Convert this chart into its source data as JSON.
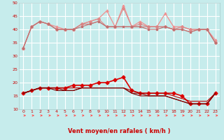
{
  "title": "",
  "xlabel": "Vent moyen/en rafales ( km/h )",
  "ylabel": "",
  "xlim": [
    -0.5,
    23.5
  ],
  "ylim": [
    10,
    50
  ],
  "yticks": [
    10,
    15,
    20,
    25,
    30,
    35,
    40,
    45,
    50
  ],
  "xticks": [
    0,
    1,
    2,
    3,
    4,
    5,
    6,
    7,
    8,
    9,
    10,
    11,
    12,
    13,
    14,
    15,
    16,
    17,
    18,
    19,
    20,
    21,
    22,
    23
  ],
  "background_color": "#c6ecec",
  "grid_color": "#ffffff",
  "lines": [
    {
      "x": [
        0,
        1,
        2,
        3,
        4,
        5,
        6,
        7,
        8,
        9,
        10,
        11,
        12,
        13,
        14,
        15,
        16,
        17,
        18,
        19,
        20,
        21,
        22,
        23
      ],
      "y": [
        33,
        41,
        43,
        42,
        41,
        40,
        40,
        42,
        43,
        44,
        47,
        41,
        49,
        41,
        43,
        41,
        41,
        46,
        41,
        41,
        40,
        40,
        40,
        36
      ],
      "color": "#f09090",
      "marker": "^",
      "markersize": 2.2,
      "linewidth": 0.9,
      "zorder": 2
    },
    {
      "x": [
        0,
        1,
        2,
        3,
        4,
        5,
        6,
        7,
        8,
        9,
        10,
        11,
        12,
        13,
        14,
        15,
        16,
        17,
        18,
        19,
        20,
        21,
        22,
        23
      ],
      "y": [
        33,
        41,
        43,
        42,
        40,
        40,
        40,
        42,
        43,
        44,
        41,
        41,
        48,
        41,
        42,
        41,
        41,
        41,
        40,
        41,
        40,
        40,
        40,
        35
      ],
      "color": "#e08888",
      "marker": "D",
      "markersize": 2.0,
      "linewidth": 0.8,
      "zorder": 2
    },
    {
      "x": [
        0,
        1,
        2,
        3,
        4,
        5,
        6,
        7,
        8,
        9,
        10,
        11,
        12,
        13,
        14,
        15,
        16,
        17,
        18,
        19,
        20,
        21,
        22,
        23
      ],
      "y": [
        33,
        41,
        43,
        42,
        40,
        40,
        40,
        42,
        42,
        43,
        41,
        41,
        41,
        41,
        41,
        41,
        41,
        41,
        40,
        40,
        39,
        40,
        40,
        35
      ],
      "color": "#d08080",
      "marker": null,
      "markersize": 0,
      "linewidth": 0.8,
      "zorder": 2
    },
    {
      "x": [
        0,
        1,
        2,
        3,
        4,
        5,
        6,
        7,
        8,
        9,
        10,
        11,
        12,
        13,
        14,
        15,
        16,
        17,
        18,
        19,
        20,
        21,
        22,
        23
      ],
      "y": [
        33,
        41,
        43,
        42,
        40,
        40,
        40,
        41,
        42,
        43,
        41,
        41,
        41,
        41,
        41,
        40,
        40,
        41,
        40,
        40,
        39,
        40,
        40,
        35
      ],
      "color": "#c07070",
      "marker": "s",
      "markersize": 2.0,
      "linewidth": 0.8,
      "zorder": 2
    },
    {
      "x": [
        0,
        1,
        2,
        3,
        4,
        5,
        6,
        7,
        8,
        9,
        10,
        11,
        12,
        13,
        14,
        15,
        16,
        17,
        18,
        19,
        20,
        21,
        22,
        23
      ],
      "y": [
        16,
        17,
        18,
        18,
        18,
        18,
        19,
        19,
        19,
        20,
        20,
        21,
        22,
        17,
        16,
        16,
        16,
        16,
        16,
        15,
        12,
        12,
        12,
        16
      ],
      "color": "#dd0000",
      "marker": "D",
      "markersize": 2.5,
      "linewidth": 1.2,
      "zorder": 3
    },
    {
      "x": [
        0,
        1,
        2,
        3,
        4,
        5,
        6,
        7,
        8,
        9,
        10,
        11,
        12,
        13,
        14,
        15,
        16,
        17,
        18,
        19,
        20,
        21,
        22,
        23
      ],
      "y": [
        16,
        17,
        18,
        18,
        18,
        18,
        18,
        18,
        18,
        18,
        18,
        18,
        18,
        17,
        16,
        16,
        16,
        16,
        15,
        14,
        13,
        13,
        13,
        16
      ],
      "color": "#bb0000",
      "marker": null,
      "markersize": 0,
      "linewidth": 0.8,
      "zorder": 3
    },
    {
      "x": [
        0,
        1,
        2,
        3,
        4,
        5,
        6,
        7,
        8,
        9,
        10,
        11,
        12,
        13,
        14,
        15,
        16,
        17,
        18,
        19,
        20,
        21,
        22,
        23
      ],
      "y": [
        16,
        17,
        18,
        18,
        18,
        17,
        17,
        18,
        18,
        18,
        18,
        18,
        18,
        16,
        16,
        15,
        15,
        15,
        14,
        13,
        12,
        12,
        12,
        16
      ],
      "color": "#990000",
      "marker": null,
      "markersize": 0,
      "linewidth": 0.8,
      "zorder": 3
    },
    {
      "x": [
        0,
        1,
        2,
        3,
        4,
        5,
        6,
        7,
        8,
        9,
        10,
        11,
        12,
        13,
        14,
        15,
        16,
        17,
        18,
        19,
        20,
        21,
        22,
        23
      ],
      "y": [
        16,
        17,
        18,
        18,
        17,
        17,
        17,
        18,
        18,
        18,
        18,
        18,
        18,
        16,
        15,
        15,
        15,
        15,
        14,
        13,
        12,
        12,
        12,
        16
      ],
      "color": "#770000",
      "marker": null,
      "markersize": 0,
      "linewidth": 0.8,
      "zorder": 3
    }
  ],
  "arrow_color": "#ff5555",
  "label_color": "#cc0000",
  "tick_color": "#cc0000",
  "xlabel_fontsize": 6.0,
  "tick_fontsize": 4.5
}
